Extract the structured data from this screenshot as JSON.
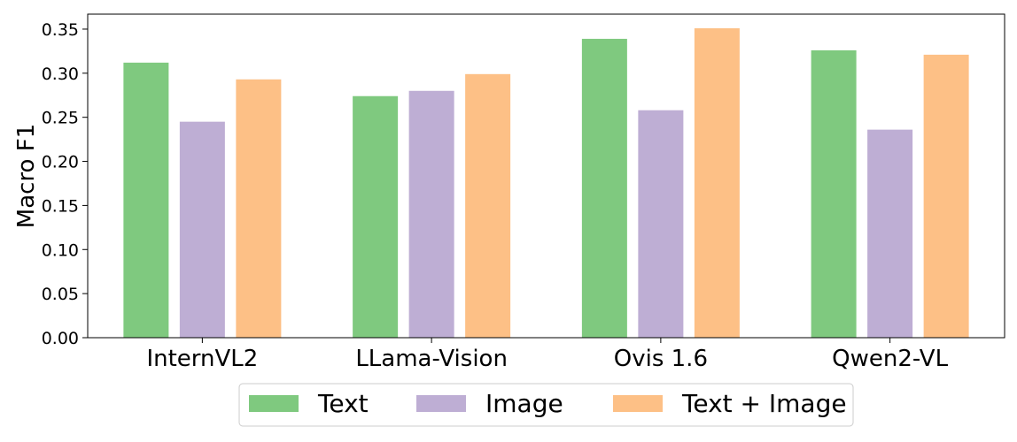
{
  "chart_data": {
    "type": "bar",
    "title": "",
    "xlabel": "",
    "ylabel": "Macro F1",
    "ylim": [
      0,
      0.367
    ],
    "yticks": [
      "0.00",
      "0.05",
      "0.10",
      "0.15",
      "0.20",
      "0.25",
      "0.30",
      "0.35"
    ],
    "categories": [
      "InternVL2",
      "LLama-Vision",
      "Ovis 1.6",
      "Qwen2-VL"
    ],
    "series": [
      {
        "name": "Text",
        "color": "#7fc97f",
        "values": [
          0.312,
          0.274,
          0.339,
          0.326
        ]
      },
      {
        "name": "Image",
        "color": "#beaed4",
        "values": [
          0.245,
          0.28,
          0.258,
          0.236
        ]
      },
      {
        "name": "Text + Image",
        "color": "#fdc086",
        "values": [
          0.293,
          0.299,
          0.351,
          0.321
        ]
      }
    ],
    "grid": false,
    "legend_position": "bottom-center"
  }
}
